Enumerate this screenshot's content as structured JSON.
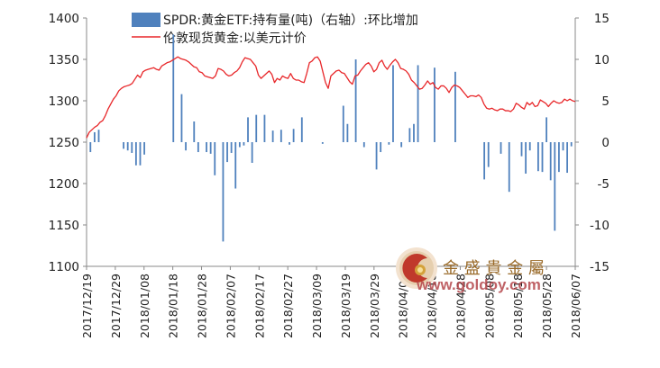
{
  "chart_data": {
    "type": "bar+line",
    "series": [
      {
        "name": "SPDR:黄金ETF:持有量(吨)（右轴）:环比增加",
        "kind": "bar",
        "axis": "right",
        "color": "#4f81bd",
        "values": [
          -1.2,
          1.2,
          1.5,
          0,
          0,
          0,
          0,
          0,
          -0.8,
          -1,
          -1.3,
          -2.8,
          -2.8,
          -1.5,
          0,
          0,
          0,
          0,
          0,
          0,
          13,
          0,
          5.8,
          -1,
          0,
          2.5,
          -1.2,
          0,
          -1.2,
          -1.4,
          -4,
          0,
          -12,
          -2.4,
          -1.3,
          -5.6,
          -0.6,
          -0.4,
          3,
          -2.5,
          3.3,
          0,
          3.3,
          0,
          1.4,
          0,
          1.5,
          0,
          -0.3,
          1.6,
          0,
          3,
          0,
          0,
          0,
          0,
          -0.2,
          0,
          0,
          0,
          0,
          4.4,
          2.2,
          0,
          10,
          0,
          -0.6,
          0,
          0,
          -3.3,
          -1.2,
          0,
          -0.3,
          9.3,
          0,
          -0.6,
          0,
          1.7,
          2.2,
          9.3,
          0,
          0,
          0,
          9,
          0,
          0,
          0,
          0,
          8.5,
          0,
          0,
          0,
          0,
          0,
          0,
          -4.5,
          -3,
          0,
          0,
          -1.4,
          0,
          -6,
          0,
          0,
          -1.7,
          -3.8,
          -1,
          0,
          -3.5,
          -3.6,
          3,
          -4.6,
          -10.7,
          -3.6,
          -1,
          -3.7,
          -0.5
        ],
        "x": [
          "2017/12/19",
          "2017/12/20",
          "2017/12/21",
          "2017/12/22",
          "2017/12/25",
          "2017/12/26",
          "2017/12/27",
          "2017/12/28",
          "2017/12/29",
          "2018/01/02",
          "2018/01/03",
          "2018/01/04",
          "2018/01/05",
          "2018/01/08",
          "2018/01/09",
          "2018/01/10",
          "2018/01/11",
          "2018/01/12",
          "2018/01/15",
          "2018/01/16",
          "2018/01/17",
          "2018/01/18",
          "2018/01/19",
          "2018/01/22",
          "2018/01/23",
          "2018/01/24",
          "2018/01/25",
          "2018/01/26",
          "2018/01/29",
          "2018/01/30",
          "2018/01/31",
          "2018/02/01",
          "2018/02/02",
          "2018/02/05",
          "2018/02/06",
          "2018/02/07",
          "2018/02/08",
          "2018/02/09",
          "2018/02/12",
          "2018/02/13",
          "2018/02/14",
          "2018/02/15",
          "2018/02/16",
          "2018/02/19",
          "2018/02/20",
          "2018/02/21",
          "2018/02/22",
          "2018/02/23",
          "2018/02/26",
          "2018/02/27",
          "2018/02/28",
          "2018/03/01",
          "2018/03/02",
          "2018/03/05",
          "2018/03/06",
          "2018/03/07",
          "2018/03/08",
          "2018/03/09",
          "2018/03/12",
          "2018/03/13",
          "2018/03/14",
          "2018/03/15",
          "2018/03/16",
          "2018/03/19",
          "2018/03/20",
          "2018/03/21",
          "2018/03/22",
          "2018/03/23",
          "2018/03/26",
          "2018/03/27",
          "2018/03/28",
          "2018/03/29",
          "2018/03/30",
          "2018/04/02",
          "2018/04/03",
          "2018/04/04",
          "2018/04/05",
          "2018/04/06",
          "2018/04/09",
          "2018/04/10",
          "2018/04/11",
          "2018/04/12",
          "2018/04/13",
          "2018/04/16",
          "2018/04/17",
          "2018/04/18",
          "2018/04/19",
          "2018/04/20",
          "2018/04/23",
          "2018/04/24",
          "2018/04/25",
          "2018/04/26",
          "2018/04/27",
          "2018/04/30",
          "2018/05/01",
          "2018/05/02",
          "2018/05/03",
          "2018/05/04",
          "2018/05/07",
          "2018/05/08",
          "2018/05/09",
          "2018/05/10",
          "2018/05/11",
          "2018/05/14",
          "2018/05/15",
          "2018/05/16",
          "2018/05/17",
          "2018/05/18",
          "2018/05/21",
          "2018/05/22",
          "2018/05/23",
          "2018/05/24",
          "2018/05/25",
          "2018/05/28",
          "2018/05/29",
          "2018/05/30",
          "2018/06/07"
        ]
      },
      {
        "name": "伦敦现货黄金:以美元计价",
        "kind": "line",
        "axis": "left",
        "color": "#e8272a",
        "values": [
          1255,
          1262,
          1265,
          1268,
          1270,
          1274,
          1276,
          1282,
          1290,
          1296,
          1302,
          1306,
          1312,
          1315,
          1317,
          1318,
          1319,
          1321,
          1326,
          1331,
          1328,
          1335,
          1337,
          1338,
          1339,
          1340,
          1338,
          1337,
          1342,
          1344,
          1346,
          1347,
          1349,
          1351,
          1353,
          1351,
          1350,
          1349,
          1347,
          1344,
          1341,
          1340,
          1335,
          1334,
          1330,
          1329,
          1328,
          1327,
          1330,
          1339,
          1338,
          1336,
          1332,
          1330,
          1331,
          1334,
          1336,
          1340,
          1347,
          1352,
          1351,
          1350,
          1346,
          1342,
          1331,
          1327,
          1330,
          1333,
          1336,
          1332,
          1322,
          1327,
          1325,
          1330,
          1328,
          1327,
          1333,
          1327,
          1325,
          1325,
          1323,
          1322,
          1333,
          1346,
          1348,
          1352,
          1353,
          1348,
          1335,
          1322,
          1315,
          1330,
          1333,
          1336,
          1337,
          1334,
          1333,
          1328,
          1323,
          1320,
          1330,
          1331,
          1336,
          1340,
          1344,
          1346,
          1342,
          1335,
          1338,
          1346,
          1349,
          1342,
          1338,
          1343,
          1347,
          1350,
          1346,
          1339,
          1338,
          1336,
          1332,
          1325,
          1322,
          1318,
          1314,
          1315,
          1319,
          1324,
          1320,
          1322,
          1316,
          1314,
          1318,
          1318,
          1315,
          1310,
          1316,
          1319,
          1318,
          1316,
          1312,
          1308,
          1304,
          1306,
          1306,
          1305,
          1307,
          1304,
          1296,
          1291,
          1290,
          1291,
          1289,
          1288,
          1290,
          1290,
          1288,
          1288,
          1287,
          1290,
          1297,
          1295,
          1292,
          1290,
          1298,
          1295,
          1298,
          1293,
          1294,
          1301,
          1299,
          1297,
          1293,
          1297,
          1300,
          1298,
          1297,
          1298,
          1302,
          1300,
          1302,
          1300,
          1299
        ]
      }
    ],
    "x_tick_labels": [
      "2017/12/19",
      "2017/12/29",
      "2018/01/08",
      "2018/01/18",
      "2018/01/28",
      "2018/02/07",
      "2018/02/17",
      "2018/02/27",
      "2018/03/09",
      "2018/03/19",
      "2018/03/29",
      "2018/04/08",
      "2018/04/18",
      "2018/04/28",
      "2018/05/08",
      "2018/05/18",
      "2018/05/28",
      "2018/06/07"
    ],
    "y_left": {
      "ylim": [
        1100,
        1400
      ],
      "ticks": [
        "1100",
        "1150",
        "1200",
        "1250",
        "1300",
        "1350",
        "1400"
      ]
    },
    "y_right": {
      "ylim": [
        -15,
        15
      ],
      "ticks": [
        "-15",
        "-10",
        "-5",
        "0",
        "5",
        "10",
        "15"
      ]
    },
    "legend_placement": "top-center",
    "grid": false
  },
  "legend": {
    "bar_label": "SPDR:黄金ETF:持有量(吨)（右轴）:环比增加",
    "line_label": "伦敦现货黄金:以美元计价"
  },
  "watermark": {
    "brand": "金 盛 貴 金 屬",
    "url": "www.goldoy.com"
  }
}
